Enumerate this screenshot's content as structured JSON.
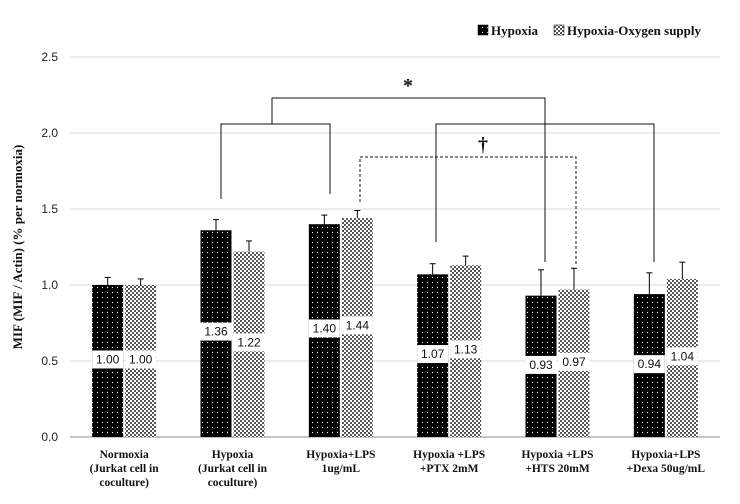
{
  "chart_data": {
    "type": "bar",
    "ylabel": "MIF (MIF / Actin)  (% per normoxia)",
    "ylim": [
      0,
      2.5
    ],
    "yticks": [
      "0.0",
      "0.5",
      "1.0",
      "1.5",
      "2.0",
      "2.5"
    ],
    "grid": "horizontal",
    "legend_position": "top-right",
    "categories": [
      [
        "Normoxia",
        "(Jurkat cell in",
        "coculture)"
      ],
      [
        "Hypoxia",
        "(Jurkat cell in",
        "coculture)"
      ],
      [
        "Hypoxia+LPS",
        "1ug/mL"
      ],
      [
        "Hypoxia +LPS",
        "+PTX  2mM"
      ],
      [
        "Hypoxia +LPS",
        "+HTS 20mM"
      ],
      [
        "Hypoxia+LPS",
        "+Dexa 50ug/mL"
      ]
    ],
    "series": [
      {
        "name": "Hypoxia",
        "pattern": "black-dotted",
        "values": [
          1.0,
          1.36,
          1.4,
          1.07,
          0.93,
          0.94
        ],
        "labels": [
          "1.00",
          "1.36",
          "1.40",
          "1.07",
          "0.93",
          "0.94"
        ],
        "errors": [
          0.05,
          0.07,
          0.06,
          0.07,
          0.17,
          0.14
        ]
      },
      {
        "name": "Hypoxia-Oxygen supply",
        "pattern": "white-checkered",
        "values": [
          1.0,
          1.22,
          1.44,
          1.13,
          0.97,
          1.04
        ],
        "labels": [
          "1.00",
          "1.22",
          "1.44",
          "1.13",
          "0.97",
          "1.04"
        ],
        "errors": [
          0.04,
          0.07,
          0.05,
          0.06,
          0.14,
          0.11
        ]
      }
    ],
    "annotations": [
      {
        "symbol": "*",
        "style": "solid",
        "bracket": "Hypoxia vs Hypoxia+LPS compared with LPS + PTX, HTS and Dexa (Hypoxia bars)"
      },
      {
        "symbol": "†",
        "style": "dashed",
        "bracket": "Hypoxia+LPS vs Hypoxia +LPS +HTS 20mM (Oxygen supply bars)"
      }
    ]
  }
}
